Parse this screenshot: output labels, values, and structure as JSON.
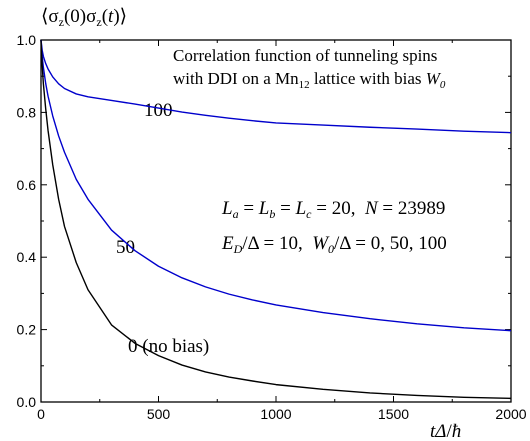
{
  "chart_data": {
    "type": "line",
    "ylabel": {
      "pre": "⟨σ",
      "sub1": "z",
      "mid": "(0)σ",
      "sub2": "z",
      "mid2": "(",
      "t": "t",
      "post": ")⟩"
    },
    "xlabel": {
      "t": "t",
      "delta": "Δ",
      "slash": "/",
      "hbar": "ħ"
    },
    "xlim": [
      0,
      2000
    ],
    "ylim": [
      0.0,
      1.0
    ],
    "xticks": [
      0,
      500,
      1000,
      1500,
      2000
    ],
    "xtick_labels": [
      "0",
      "500",
      "1000",
      "1500",
      "2000"
    ],
    "yticks": [
      0.0,
      0.2,
      0.4,
      0.6,
      0.8,
      1.0
    ],
    "ytick_labels": [
      "0.0",
      "0.2",
      "0.4",
      "0.6",
      "0.8",
      "1.0"
    ],
    "annotation_title": {
      "line1": "Correlation function of tunneling spins",
      "line2_pre": "with DDI on a Mn",
      "line2_sub": "12",
      "line2_mid": " lattice with bias ",
      "line2_W": "W",
      "line2_Wsub": "0"
    },
    "annotation_params": {
      "line1": {
        "La": "L",
        "La_sub": "a",
        "eq1": " = ",
        "Lb": "L",
        "Lb_sub": "b",
        "eq2": " = ",
        "Lc": "L",
        "Lc_sub": "c",
        "val": " = 20,  ",
        "N": "N",
        "Nval": " = 23989"
      },
      "line2": {
        "ED": "E",
        "ED_sub": "D",
        "ED_val": "/Δ = 10,  ",
        "W": "W",
        "W_sub": "0",
        "W_val": "/Δ = 0, 50, 100"
      }
    },
    "series": [
      {
        "label": "100",
        "color": "#0000cc",
        "x": [
          0,
          5,
          10,
          20,
          30,
          50,
          75,
          100,
          150,
          200,
          300,
          400,
          500,
          600,
          700,
          800,
          900,
          1000,
          1200,
          1400,
          1600,
          1800,
          2000
        ],
        "y": [
          1.0,
          0.972,
          0.955,
          0.935,
          0.92,
          0.898,
          0.879,
          0.866,
          0.851,
          0.843,
          0.833,
          0.823,
          0.812,
          0.801,
          0.792,
          0.784,
          0.777,
          0.771,
          0.765,
          0.759,
          0.754,
          0.748,
          0.744
        ]
      },
      {
        "label": "50",
        "color": "#0000cc",
        "x": [
          0,
          5,
          10,
          20,
          30,
          50,
          75,
          100,
          150,
          200,
          300,
          400,
          500,
          600,
          700,
          800,
          900,
          1000,
          1200,
          1400,
          1600,
          1800,
          2000
        ],
        "y": [
          1.0,
          0.955,
          0.925,
          0.88,
          0.845,
          0.79,
          0.735,
          0.69,
          0.615,
          0.56,
          0.475,
          0.418,
          0.375,
          0.343,
          0.318,
          0.298,
          0.282,
          0.268,
          0.247,
          0.23,
          0.216,
          0.205,
          0.197
        ]
      },
      {
        "label": "0 (no bias)",
        "color": "#000000",
        "x": [
          0,
          5,
          10,
          20,
          30,
          50,
          75,
          100,
          150,
          200,
          300,
          400,
          500,
          600,
          700,
          800,
          900,
          1000,
          1200,
          1400,
          1600,
          1800,
          2000
        ],
        "y": [
          1.0,
          0.93,
          0.88,
          0.81,
          0.75,
          0.655,
          0.56,
          0.485,
          0.385,
          0.31,
          0.213,
          0.162,
          0.128,
          0.102,
          0.083,
          0.069,
          0.058,
          0.048,
          0.035,
          0.025,
          0.018,
          0.013,
          0.01
        ]
      }
    ]
  }
}
